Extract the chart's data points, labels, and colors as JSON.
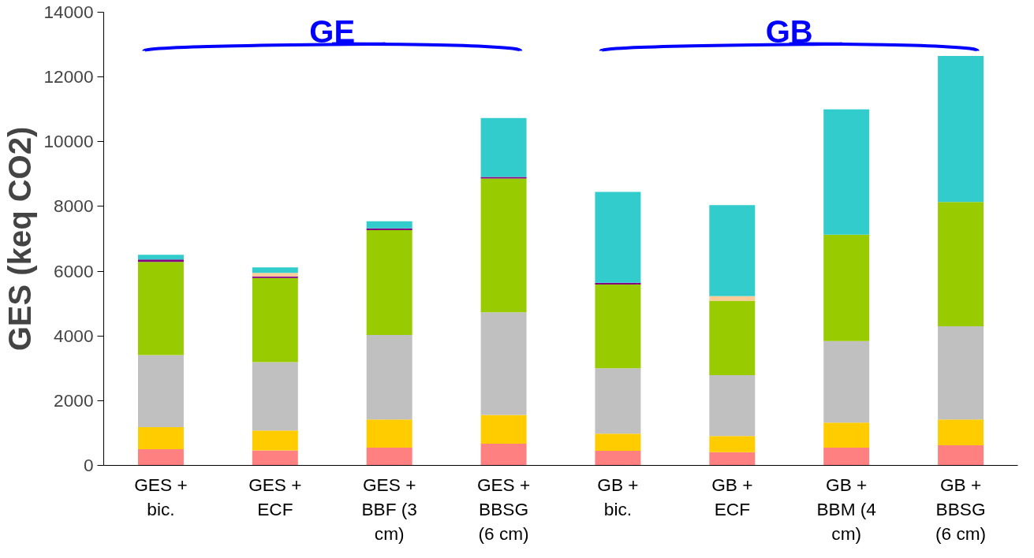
{
  "chart_data": {
    "type": "bar",
    "stacked": true,
    "ylabel": "GES (keq CO2)",
    "categories": [
      "GES + bic.",
      "GES + ECF",
      "GES + BBF (3 cm)",
      "GES + BBSG (6 cm)",
      "GB + bic.",
      "GB + ECF",
      "GB + BBM (4 cm)",
      "GB + BBSG (6 cm)"
    ],
    "series": [
      {
        "color": "#ff8080",
        "values": [
          500,
          460,
          550,
          670,
          450,
          410,
          550,
          620
        ]
      },
      {
        "color": "#ffcc00",
        "values": [
          680,
          620,
          870,
          890,
          530,
          500,
          770,
          800
        ]
      },
      {
        "color": "#c0c0c0",
        "values": [
          2230,
          2110,
          2610,
          3170,
          2020,
          1880,
          2520,
          2880
        ]
      },
      {
        "color": "#99cc00",
        "values": [
          2880,
          2600,
          3240,
          4130,
          2590,
          2300,
          3290,
          3840
        ]
      },
      {
        "color": "#800080",
        "values": [
          70,
          50,
          50,
          50,
          50,
          0,
          0,
          0
        ]
      },
      {
        "color": "#ffcc99",
        "values": [
          0,
          110,
          0,
          0,
          0,
          140,
          0,
          0
        ]
      },
      {
        "color": "#33cccc",
        "values": [
          150,
          170,
          220,
          1820,
          2810,
          2810,
          3870,
          4510
        ]
      }
    ],
    "ylim": [
      0,
      14000
    ],
    "yticks": [
      0,
      2000,
      4000,
      6000,
      8000,
      10000,
      12000,
      14000
    ],
    "grid": false,
    "annotations": [
      "GE",
      "GB"
    ]
  }
}
